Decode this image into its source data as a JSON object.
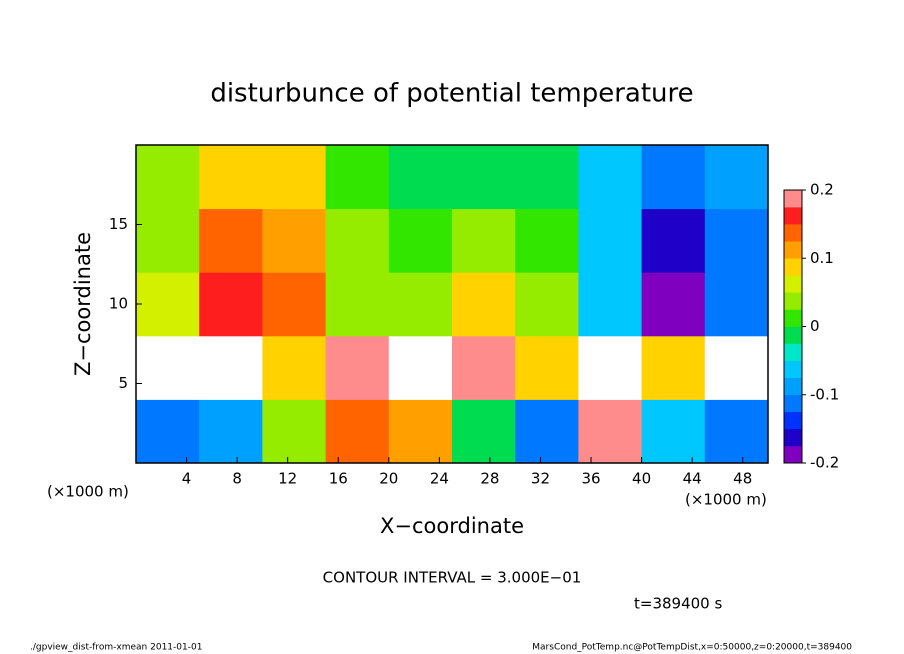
{
  "chart_data": {
    "type": "contour",
    "title": "disturbunce of potential temperature",
    "x_label": "X−coordinate",
    "y_label": "Z−coordinate",
    "x_unit": "(×1000 m)",
    "y_unit": "(×1000 m)",
    "contour_interval": "CONTOUR INTERVAL = 3.000E−01",
    "time_label": "t=389400 s",
    "footer_left": "./gpview_dist-from-xmean  2011-01-01",
    "footer_right": "MarsCond_PotTemp.nc@PotTempDist,x=0:50000,z=0:20000,t=389400",
    "xlim": [
      0,
      50
    ],
    "ylim": [
      0,
      20
    ],
    "xticks": [
      4,
      8,
      12,
      16,
      20,
      24,
      28,
      32,
      36,
      40,
      44,
      48
    ],
    "yticks": [
      5,
      10,
      15
    ],
    "x": [
      2.5,
      7.5,
      12.5,
      17.5,
      22.5,
      27.5,
      32.5,
      37.5,
      42.5,
      47.5
    ],
    "z": [
      2,
      6,
      10,
      14,
      18
    ],
    "values": [
      [
        -0.1,
        -0.08,
        0.05,
        0.15,
        0.12,
        0.0,
        -0.1,
        0.2,
        -0.05,
        -0.1
      ],
      [
        0.21,
        0.22,
        0.1,
        0.18,
        0.21,
        0.18,
        0.1,
        0.22,
        0.1,
        0.22
      ],
      [
        0.06,
        0.17,
        0.14,
        0.05,
        0.03,
        0.1,
        0.03,
        -0.07,
        -0.2,
        -0.12
      ],
      [
        0.04,
        0.13,
        0.12,
        0.03,
        0.01,
        0.03,
        0.01,
        -0.06,
        -0.16,
        -0.1
      ],
      [
        0.05,
        0.1,
        0.08,
        0.02,
        0.0,
        0.0,
        0.0,
        -0.05,
        -0.12,
        -0.08
      ]
    ],
    "colorbar": {
      "lim": [
        -0.2,
        0.2
      ],
      "ticks": [
        -0.2,
        -0.1,
        0,
        0.1,
        0.2
      ],
      "bounds": [
        -0.2,
        -0.175,
        -0.15,
        -0.125,
        -0.1,
        -0.075,
        -0.05,
        -0.025,
        0,
        0.025,
        0.05,
        0.075,
        0.1,
        0.125,
        0.15,
        0.175,
        0.2
      ],
      "colors": [
        "#7f00bf",
        "#1e00c8",
        "#0032ff",
        "#0078ff",
        "#00a0ff",
        "#00c8ff",
        "#00e6c8",
        "#00dc50",
        "#32e600",
        "#96ec00",
        "#d2f000",
        "#ffd200",
        "#ffa000",
        "#ff6400",
        "#ff1e1e",
        "#ff8c8c"
      ],
      "over_color": "#ffffff"
    }
  }
}
